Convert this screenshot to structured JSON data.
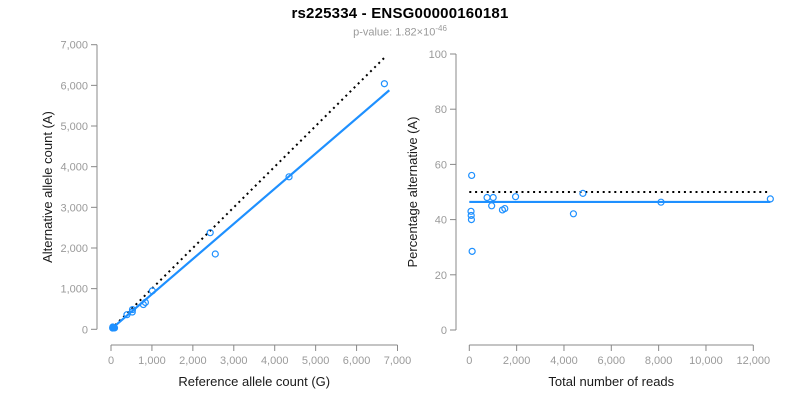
{
  "header": {
    "title": "rs225334 - ENSG00000160181",
    "pvalue_prefix": "p-value: 1.82×10",
    "pvalue_exponent": "-46"
  },
  "colors": {
    "accent_blue": "#1E90FF",
    "dotted_black": "#000000",
    "axis": "#888888",
    "tick_label": "#9a9a9a",
    "axis_title": "#1a1a1a",
    "subtitle": "#9a9a9a"
  },
  "chart_data": [
    {
      "type": "scatter",
      "panel": "left",
      "xlabel": "Reference allele count (G)",
      "ylabel": "Alternative allele count (A)",
      "xlim": [
        0,
        7000
      ],
      "ylim": [
        0,
        7000
      ],
      "grid": false,
      "x_ticks": [
        0,
        1000,
        2000,
        3000,
        4000,
        5000,
        6000,
        7000
      ],
      "x_tick_labels": [
        "0",
        "1,000",
        "2,000",
        "3,000",
        "4,000",
        "5,000",
        "6,000",
        "7,000"
      ],
      "y_ticks": [
        0,
        1000,
        2000,
        3000,
        4000,
        5000,
        6000,
        7000
      ],
      "y_tick_labels": [
        "0",
        "1,000",
        "2,000",
        "3,000",
        "4,000",
        "5,000",
        "6,000",
        "7,000"
      ],
      "points": [
        {
          "x": 44,
          "y": 56,
          "filled": true
        },
        {
          "x": 41,
          "y": 31,
          "filled": true
        },
        {
          "x": 47,
          "y": 33,
          "filled": true
        },
        {
          "x": 54,
          "y": 36,
          "filled": true
        },
        {
          "x": 86,
          "y": 34,
          "filled": true
        },
        {
          "x": 390,
          "y": 360,
          "filled": false
        },
        {
          "x": 520,
          "y": 425,
          "filled": false
        },
        {
          "x": 525,
          "y": 485,
          "filled": false
        },
        {
          "x": 791,
          "y": 609,
          "filled": false
        },
        {
          "x": 840,
          "y": 660,
          "filled": false
        },
        {
          "x": 1010,
          "y": 945,
          "filled": false
        },
        {
          "x": 2548,
          "y": 1852,
          "filled": false
        },
        {
          "x": 2424,
          "y": 2376,
          "filled": false
        },
        {
          "x": 4350,
          "y": 3750,
          "filled": false
        },
        {
          "x": 6680,
          "y": 6040,
          "filled": false
        }
      ],
      "lines": [
        {
          "name": "identity-line",
          "style": "dotted",
          "color": "#000000",
          "x": [
            0,
            6700
          ],
          "y": [
            0,
            6700
          ]
        },
        {
          "name": "regression-line",
          "style": "solid",
          "color": "#1E90FF",
          "x": [
            0,
            6800
          ],
          "y": [
            0,
            5880
          ]
        }
      ]
    },
    {
      "type": "scatter",
      "panel": "right",
      "xlabel": "Total number of reads",
      "ylabel": "Percentage alternative (A)",
      "xlim": [
        0,
        12000
      ],
      "ylim": [
        0,
        100
      ],
      "grid": false,
      "x_ticks": [
        0,
        2000,
        4000,
        6000,
        8000,
        10000,
        12000
      ],
      "x_tick_labels": [
        "0",
        "2,000",
        "4,000",
        "6,000",
        "8,000",
        "10,000",
        "12,000"
      ],
      "y_ticks": [
        0,
        20,
        40,
        60,
        80,
        100
      ],
      "y_tick_labels": [
        "0",
        "20",
        "40",
        "60",
        "80",
        "100"
      ],
      "points": [
        {
          "x": 100,
          "y": 56,
          "filled": false
        },
        {
          "x": 72,
          "y": 43,
          "filled": false
        },
        {
          "x": 80,
          "y": 41.5,
          "filled": false
        },
        {
          "x": 90,
          "y": 40,
          "filled": false
        },
        {
          "x": 120,
          "y": 28.5,
          "filled": false
        },
        {
          "x": 750,
          "y": 48,
          "filled": false
        },
        {
          "x": 945,
          "y": 45,
          "filled": false
        },
        {
          "x": 1010,
          "y": 48,
          "filled": false
        },
        {
          "x": 1400,
          "y": 43.5,
          "filled": false
        },
        {
          "x": 1500,
          "y": 44,
          "filled": false
        },
        {
          "x": 1955,
          "y": 48.3,
          "filled": false
        },
        {
          "x": 4400,
          "y": 42.1,
          "filled": false
        },
        {
          "x": 4800,
          "y": 49.5,
          "filled": false
        },
        {
          "x": 8100,
          "y": 46.3,
          "filled": false
        },
        {
          "x": 12720,
          "y": 47.5,
          "filled": false
        }
      ],
      "lines": [
        {
          "name": "fifty-percent-line",
          "style": "dotted",
          "color": "#000000",
          "x": [
            0,
            12720
          ],
          "y": [
            50,
            50
          ]
        },
        {
          "name": "mean-percentage-line",
          "style": "solid",
          "color": "#1E90FF",
          "x": [
            0,
            12720
          ],
          "y": [
            46.4,
            46.4
          ]
        }
      ]
    }
  ]
}
